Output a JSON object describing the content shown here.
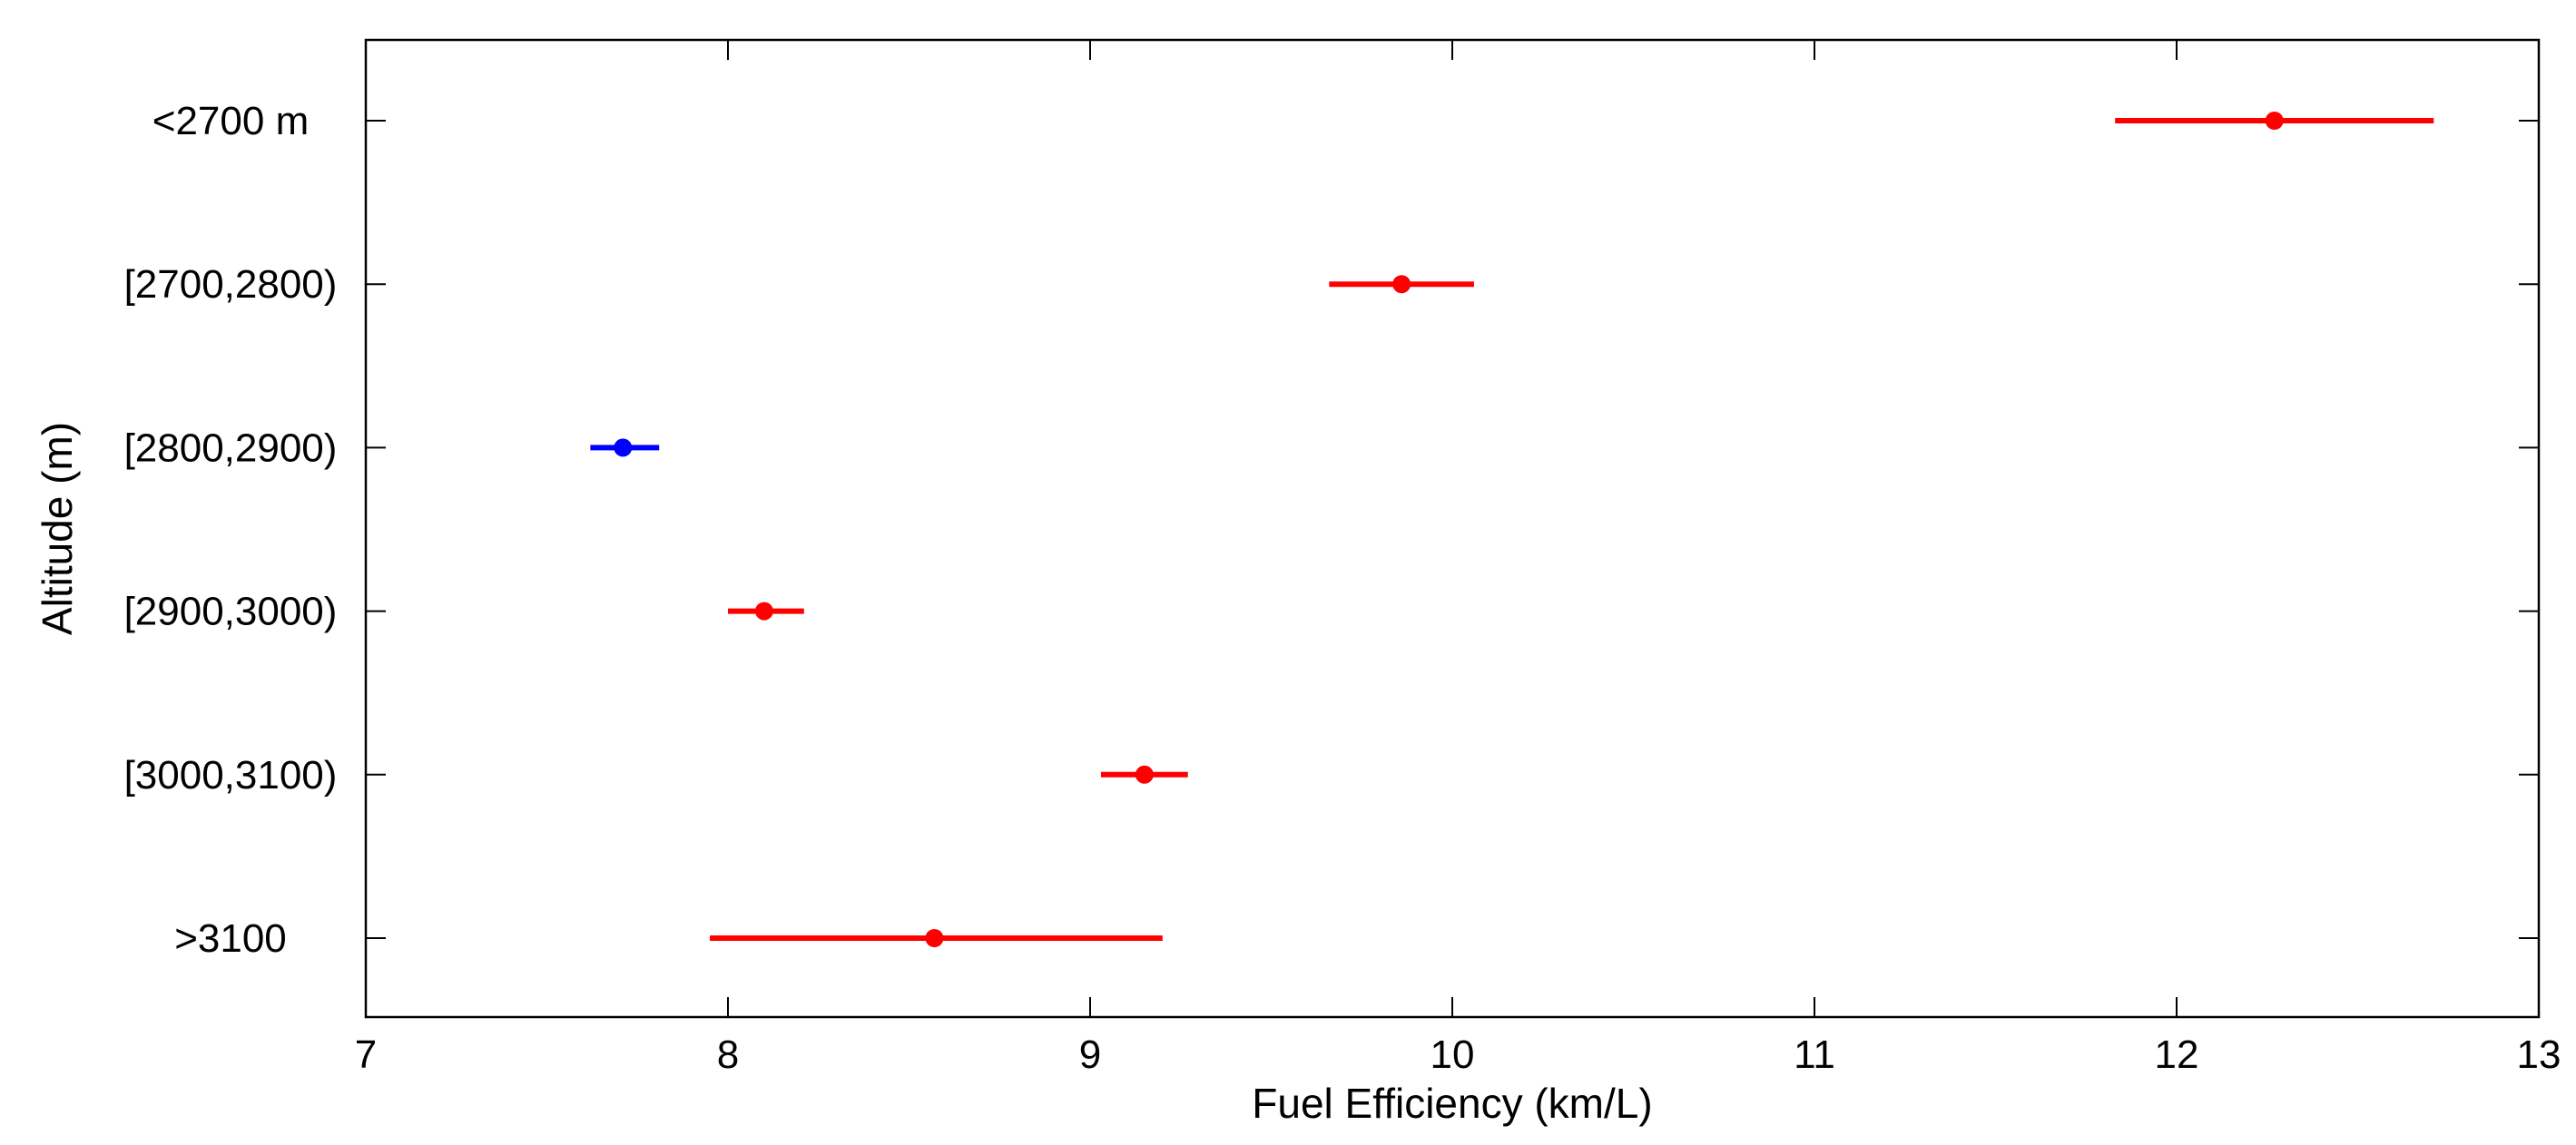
{
  "chart_data": {
    "type": "errorbar",
    "title": "",
    "xlabel": "Fuel Efficiency (km/L)",
    "ylabel": "Altitude (m)",
    "xlim": [
      7,
      13
    ],
    "xticks": [
      "7",
      "8",
      "9",
      "10",
      "11",
      "12",
      "13"
    ],
    "grid": false,
    "legend": "none",
    "categories": [
      "<2700 m",
      "[2700,2800)",
      "[2800,2900)",
      "[2900,3000)",
      "[3000,3100)",
      ">3100"
    ],
    "points": [
      {
        "category": "<2700 m",
        "value": 12.27,
        "low": 11.83,
        "high": 12.71,
        "color": "#ff0000"
      },
      {
        "category": "[2700,2800)",
        "value": 9.86,
        "low": 9.66,
        "high": 10.06,
        "color": "#ff0000"
      },
      {
        "category": "[2800,2900)",
        "value": 7.71,
        "low": 7.62,
        "high": 7.81,
        "color": "#0000ff"
      },
      {
        "category": "[2900,3000)",
        "value": 8.1,
        "low": 8.0,
        "high": 8.21,
        "color": "#ff0000"
      },
      {
        "category": "[3000,3100)",
        "value": 9.15,
        "low": 9.03,
        "high": 9.27,
        "color": "#ff0000"
      },
      {
        "category": ">3100",
        "value": 8.57,
        "low": 7.95,
        "high": 9.2,
        "color": "#ff0000"
      }
    ]
  }
}
